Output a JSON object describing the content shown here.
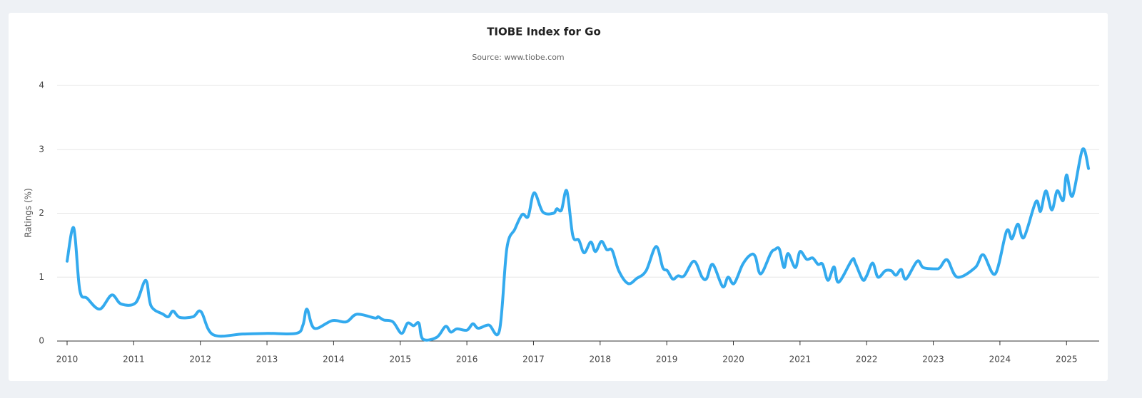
{
  "chart_data": {
    "type": "line",
    "title": "TIOBE Index for Go",
    "subtitle": "Source: www.tiobe.com",
    "y_label": "Ratings (%)",
    "xlim": [
      2009.85,
      2025.49
    ],
    "xticks": [
      2010,
      2011,
      2012,
      2013,
      2014,
      2015,
      2016,
      2017,
      2018,
      2019,
      2020,
      2021,
      2022,
      2023,
      2024,
      2025
    ],
    "ylim": [
      0,
      4
    ],
    "yticks": [
      0,
      1,
      2,
      3,
      4
    ],
    "grid": true,
    "series": [
      {
        "name": "Go",
        "color": "#33aaee",
        "x": [
          2010.0,
          2010.1,
          2010.19,
          2010.3,
          2010.49,
          2010.67,
          2010.81,
          2011.03,
          2011.18,
          2011.26,
          2011.44,
          2011.52,
          2011.59,
          2011.69,
          2011.89,
          2012.01,
          2012.19,
          2012.64,
          2013.01,
          2013.44,
          2013.54,
          2013.6,
          2013.71,
          2013.98,
          2014.19,
          2014.35,
          2014.62,
          2014.67,
          2014.75,
          2014.89,
          2015.02,
          2015.11,
          2015.2,
          2015.28,
          2015.34,
          2015.55,
          2015.68,
          2015.76,
          2015.85,
          2016.0,
          2016.09,
          2016.17,
          2016.33,
          2016.49,
          2016.6,
          2016.72,
          2016.83,
          2016.92,
          2017.01,
          2017.14,
          2017.3,
          2017.35,
          2017.42,
          2017.5,
          2017.59,
          2017.68,
          2017.76,
          2017.86,
          2017.93,
          2018.02,
          2018.1,
          2018.18,
          2018.28,
          2018.42,
          2018.55,
          2018.69,
          2018.84,
          2018.94,
          2019.01,
          2019.09,
          2019.17,
          2019.26,
          2019.41,
          2019.53,
          2019.6,
          2019.69,
          2019.84,
          2019.92,
          2020.01,
          2020.14,
          2020.26,
          2020.33,
          2020.41,
          2020.56,
          2020.62,
          2020.69,
          2020.76,
          2020.82,
          2020.93,
          2021.0,
          2021.1,
          2021.19,
          2021.27,
          2021.34,
          2021.42,
          2021.51,
          2021.58,
          2021.78,
          2021.83,
          2021.94,
          2022.0,
          2022.09,
          2022.17,
          2022.28,
          2022.37,
          2022.44,
          2022.52,
          2022.59,
          2022.76,
          2022.85,
          2023.04,
          2023.1,
          2023.21,
          2023.36,
          2023.63,
          2023.75,
          2023.93,
          2024.1,
          2024.18,
          2024.27,
          2024.36,
          2024.54,
          2024.61,
          2024.69,
          2024.78,
          2024.86,
          2024.95,
          2025.0,
          2025.09,
          2025.24,
          2025.33
        ],
        "values": [
          1.25,
          1.77,
          0.8,
          0.67,
          0.5,
          0.72,
          0.58,
          0.6,
          0.95,
          0.55,
          0.42,
          0.38,
          0.47,
          0.37,
          0.38,
          0.46,
          0.1,
          0.11,
          0.12,
          0.12,
          0.25,
          0.5,
          0.2,
          0.32,
          0.3,
          0.42,
          0.36,
          0.38,
          0.33,
          0.3,
          0.12,
          0.28,
          0.24,
          0.28,
          0.03,
          0.06,
          0.23,
          0.14,
          0.19,
          0.17,
          0.27,
          0.2,
          0.25,
          0.17,
          1.45,
          1.75,
          1.98,
          1.95,
          2.32,
          2.02,
          2.0,
          2.07,
          2.05,
          2.35,
          1.65,
          1.58,
          1.38,
          1.55,
          1.4,
          1.56,
          1.43,
          1.42,
          1.1,
          0.9,
          0.98,
          1.1,
          1.48,
          1.15,
          1.1,
          0.97,
          1.02,
          1.02,
          1.25,
          1.0,
          0.98,
          1.2,
          0.85,
          1.0,
          0.9,
          1.2,
          1.35,
          1.32,
          1.05,
          1.37,
          1.43,
          1.44,
          1.15,
          1.37,
          1.15,
          1.4,
          1.28,
          1.3,
          1.2,
          1.2,
          0.95,
          1.16,
          0.92,
          1.27,
          1.22,
          0.96,
          1.02,
          1.22,
          1.0,
          1.1,
          1.1,
          1.03,
          1.12,
          0.97,
          1.25,
          1.15,
          1.13,
          1.15,
          1.27,
          1.0,
          1.15,
          1.35,
          1.05,
          1.72,
          1.6,
          1.83,
          1.62,
          2.18,
          2.03,
          2.35,
          2.05,
          2.35,
          2.2,
          2.6,
          2.27,
          3.0,
          2.7
        ]
      }
    ]
  }
}
